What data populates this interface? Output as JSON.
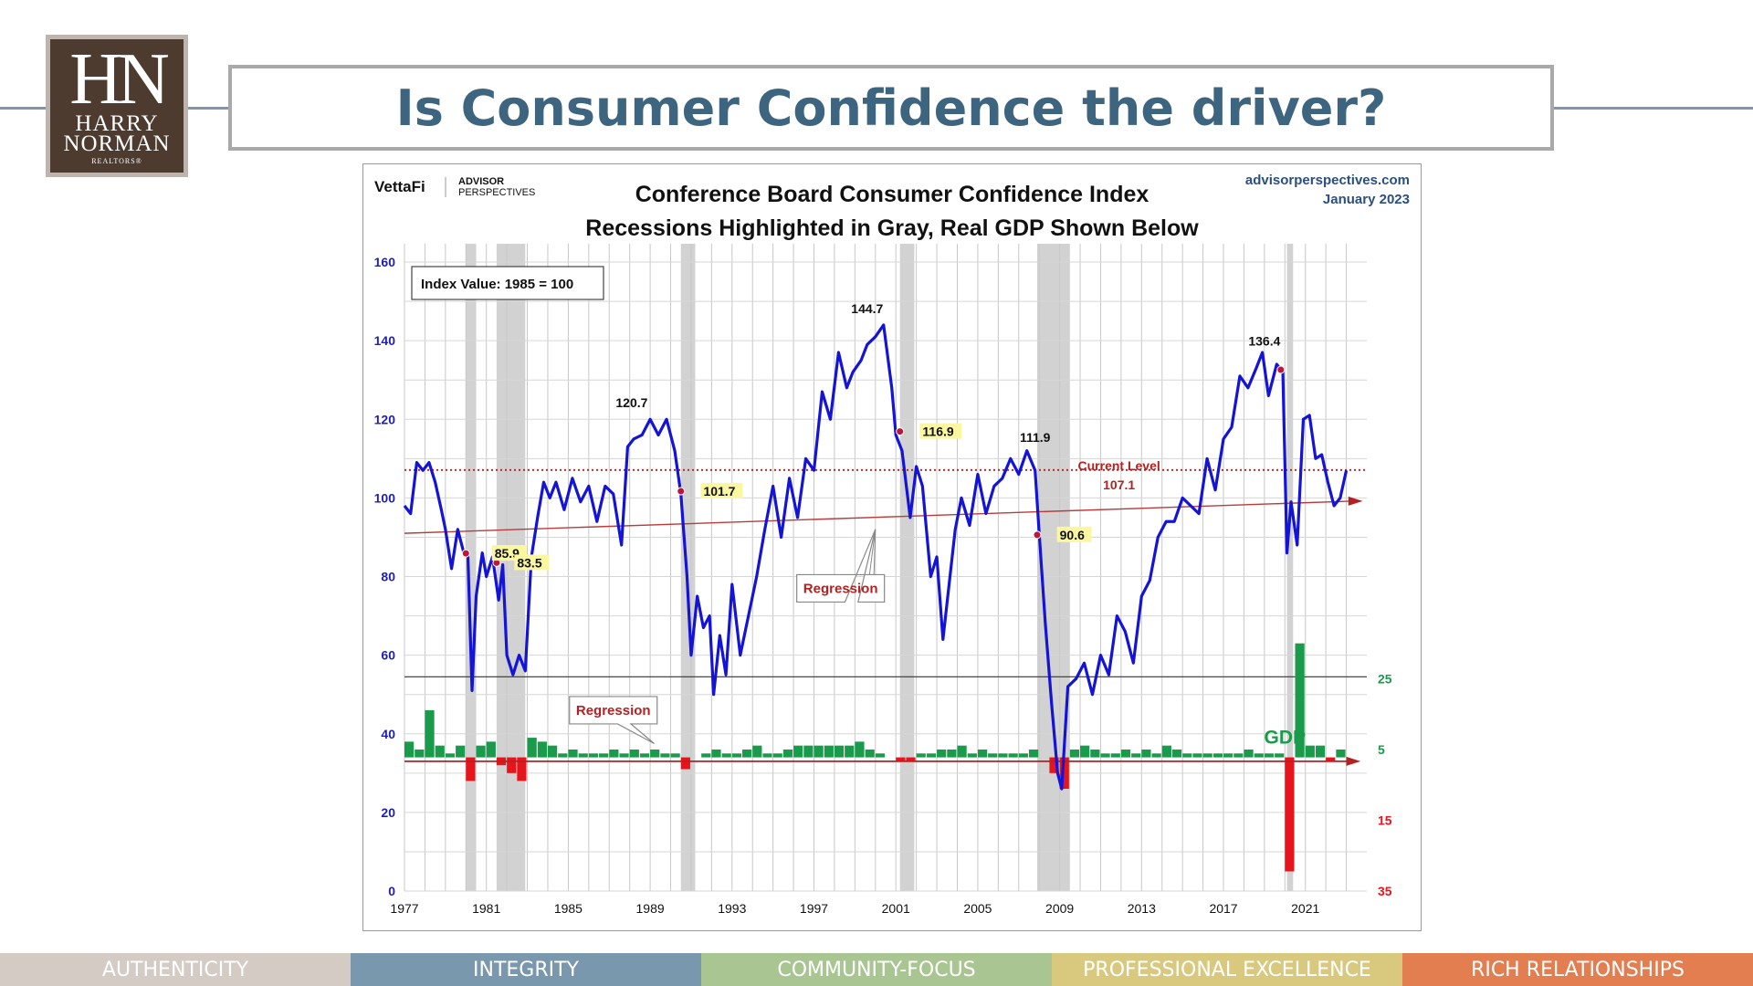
{
  "logo": {
    "monogram": "HN",
    "line1": "HARRY",
    "line2": "NORMAN",
    "line3": "REALTORS®"
  },
  "slide_title": "Is Consumer Confidence the driver?",
  "footer": {
    "items": [
      {
        "label": "AUTHENTICITY",
        "color": "#d3cbc4"
      },
      {
        "label": "INTEGRITY",
        "color": "#7a98ad"
      },
      {
        "label": "COMMUNITY-FOCUS",
        "color": "#a8c592"
      },
      {
        "label": "PROFESSIONAL EXCELLENCE",
        "color": "#d8c97e"
      },
      {
        "label": "RICH RELATIONSHIPS",
        "color": "#e27e50"
      }
    ]
  },
  "chart_data": {
    "type": "line",
    "brand": {
      "vettafi": "VettaFi",
      "ap1": "ADVISOR",
      "ap2": "PERSPECTIVES"
    },
    "source": "advisorperspectives.com",
    "date": "January 2023",
    "title": "Conference Board Consumer Confidence Index",
    "subtitle": "Recessions Highlighted in Gray, Real GDP Shown Below",
    "index_note": "Index Value: 1985 = 100",
    "x_ticks": [
      "1977",
      "1981",
      "1985",
      "1989",
      "1993",
      "1997",
      "2001",
      "2005",
      "2009",
      "2013",
      "2017",
      "2021"
    ],
    "xlim": [
      1977,
      2024
    ],
    "y_ticks": [
      "0",
      "20",
      "40",
      "60",
      "80",
      "100",
      "120",
      "140",
      "160"
    ],
    "ylim": [
      0,
      160
    ],
    "gdp_ticks": [
      {
        "label": "25",
        "y": 54
      },
      {
        "label": "5",
        "y": 36
      },
      {
        "label": "15",
        "y": 18
      },
      {
        "label": "35",
        "y": 0
      }
    ],
    "recessions": [
      [
        1980.0,
        1980.5
      ],
      [
        1981.5,
        1982.9
      ],
      [
        1990.5,
        1991.2
      ],
      [
        2001.2,
        2001.9
      ],
      [
        2007.9,
        2009.5
      ],
      [
        2020.1,
        2020.4
      ]
    ],
    "confidence": {
      "x": [
        1977.0,
        1977.3,
        1977.6,
        1977.9,
        1978.2,
        1978.5,
        1978.8,
        1979.0,
        1979.3,
        1979.6,
        1979.9,
        1980.1,
        1980.3,
        1980.5,
        1980.8,
        1981.0,
        1981.3,
        1981.6,
        1981.8,
        1982.0,
        1982.3,
        1982.6,
        1982.9,
        1983.2,
        1983.5,
        1983.8,
        1984.1,
        1984.4,
        1984.8,
        1985.2,
        1985.6,
        1986.0,
        1986.4,
        1986.8,
        1987.2,
        1987.6,
        1987.9,
        1988.2,
        1988.6,
        1989.0,
        1989.4,
        1989.8,
        1990.2,
        1990.5,
        1990.8,
        1991.0,
        1991.3,
        1991.6,
        1991.9,
        1992.1,
        1992.4,
        1992.7,
        1993.0,
        1993.4,
        1993.8,
        1994.2,
        1994.6,
        1995.0,
        1995.4,
        1995.8,
        1996.2,
        1996.6,
        1997.0,
        1997.4,
        1997.8,
        1998.2,
        1998.6,
        1998.9,
        1999.3,
        1999.6,
        2000.0,
        2000.4,
        2000.8,
        2001.0,
        2001.3,
        2001.7,
        2002.0,
        2002.3,
        2002.7,
        2003.0,
        2003.3,
        2003.6,
        2003.9,
        2004.2,
        2004.6,
        2005.0,
        2005.4,
        2005.8,
        2006.2,
        2006.6,
        2007.0,
        2007.4,
        2007.8,
        2008.0,
        2008.3,
        2008.6,
        2008.9,
        2009.1,
        2009.4,
        2009.8,
        2010.2,
        2010.6,
        2011.0,
        2011.4,
        2011.8,
        2012.2,
        2012.6,
        2013.0,
        2013.4,
        2013.8,
        2014.2,
        2014.6,
        2015.0,
        2015.4,
        2015.8,
        2016.2,
        2016.6,
        2017.0,
        2017.4,
        2017.8,
        2018.2,
        2018.6,
        2018.9,
        2019.2,
        2019.6,
        2019.9,
        2020.1,
        2020.3,
        2020.6,
        2020.9,
        2021.2,
        2021.5,
        2021.8,
        2022.1,
        2022.4,
        2022.7,
        2023.0
      ],
      "y": [
        98,
        96,
        109,
        107,
        109,
        104,
        97,
        92,
        82,
        92,
        86,
        85,
        51,
        75,
        86,
        80,
        85,
        74,
        83,
        60,
        55,
        60,
        56,
        85,
        95,
        104,
        100,
        104,
        97,
        105,
        99,
        103,
        94,
        103,
        101,
        88,
        113,
        115,
        116,
        120,
        116,
        120,
        112,
        101,
        80,
        60,
        75,
        67,
        70,
        50,
        65,
        55,
        78,
        60,
        70,
        80,
        92,
        103,
        90,
        105,
        95,
        110,
        107,
        127,
        120,
        137,
        128,
        132,
        135,
        139,
        141,
        144,
        128,
        116,
        112,
        95,
        108,
        103,
        80,
        85,
        64,
        78,
        92,
        100,
        93,
        106,
        96,
        103,
        105,
        110,
        106,
        112,
        107,
        91,
        68,
        48,
        30,
        26,
        52,
        54,
        58,
        50,
        60,
        55,
        70,
        66,
        58,
        75,
        79,
        90,
        94,
        94,
        100,
        98,
        96,
        110,
        102,
        115,
        118,
        131,
        128,
        133,
        137,
        126,
        134,
        132,
        86,
        99,
        88,
        120,
        121,
        110,
        111,
        104,
        98,
        100,
        107
      ]
    },
    "labels": [
      {
        "x": 1999.6,
        "y": 144.7,
        "text": "144.7",
        "style": "peak"
      },
      {
        "x": 2019.0,
        "y": 136.4,
        "text": "136.4",
        "style": "peak"
      },
      {
        "x": 1988.1,
        "y": 120.7,
        "text": "120.7",
        "style": "peak"
      },
      {
        "x": 2007.8,
        "y": 111.9,
        "text": "111.9",
        "style": "peak"
      },
      {
        "x": 1981.0,
        "y": 85.9,
        "text": "85.9",
        "style": "hl"
      },
      {
        "x": 1982.1,
        "y": 83.5,
        "text": "83.5",
        "style": "hl"
      },
      {
        "x": 1991.2,
        "y": 101.7,
        "text": "101.7",
        "style": "hl"
      },
      {
        "x": 2001.9,
        "y": 116.9,
        "text": "116.9",
        "style": "hl"
      },
      {
        "x": 2008.6,
        "y": 90.6,
        "text": "90.6",
        "style": "hl"
      }
    ],
    "recession_points": [
      {
        "x": 1980.0,
        "y": 85.9
      },
      {
        "x": 1981.5,
        "y": 83.5
      },
      {
        "x": 1990.5,
        "y": 101.7
      },
      {
        "x": 2001.2,
        "y": 116.9
      },
      {
        "x": 2007.9,
        "y": 90.6
      },
      {
        "x": 2019.8,
        "y": 132.6
      }
    ],
    "current_level": {
      "value": 107.1,
      "label": "Current Level",
      "value_label": "107.1"
    },
    "regression": {
      "start": 91,
      "end": 99.2,
      "label": "Regression"
    },
    "gdp_regression": {
      "value": 33,
      "label": "Regression"
    },
    "gdp_label": "GDP",
    "gdp_zero": 34,
    "gdp": {
      "x": [
        1977.0,
        1977.5,
        1978.0,
        1978.5,
        1979.0,
        1979.5,
        1980.0,
        1980.5,
        1981.0,
        1981.5,
        1982.0,
        1982.5,
        1983.0,
        1983.5,
        1984.0,
        1984.5,
        1985.0,
        1985.5,
        1986.0,
        1986.5,
        1987.0,
        1987.5,
        1988.0,
        1988.5,
        1989.0,
        1989.5,
        1990.0,
        1990.5,
        1991.0,
        1991.5,
        1992.0,
        1992.5,
        1993.0,
        1993.5,
        1994.0,
        1994.5,
        1995.0,
        1995.5,
        1996.0,
        1996.5,
        1997.0,
        1997.5,
        1998.0,
        1998.5,
        1999.0,
        1999.5,
        2000.0,
        2000.5,
        2001.0,
        2001.5,
        2002.0,
        2002.5,
        2003.0,
        2003.5,
        2004.0,
        2004.5,
        2005.0,
        2005.5,
        2006.0,
        2006.5,
        2007.0,
        2007.5,
        2008.0,
        2008.5,
        2009.0,
        2009.5,
        2010.0,
        2010.5,
        2011.0,
        2011.5,
        2012.0,
        2012.5,
        2013.0,
        2013.5,
        2014.0,
        2014.5,
        2015.0,
        2015.5,
        2016.0,
        2016.5,
        2017.0,
        2017.5,
        2018.0,
        2018.5,
        2019.0,
        2019.5,
        2020.0,
        2020.5,
        2021.0,
        2021.5,
        2022.0,
        2022.5
      ],
      "y": [
        38,
        36,
        46,
        37,
        35,
        37,
        28,
        37,
        38,
        32,
        30,
        28,
        39,
        38,
        37,
        35,
        36,
        35,
        35,
        35,
        36,
        35,
        36,
        35,
        36,
        35,
        35,
        31,
        34,
        35,
        36,
        35,
        35,
        36,
        37,
        35,
        35,
        36,
        37,
        37,
        37,
        37,
        37,
        37,
        38,
        36,
        35,
        34,
        33,
        33,
        35,
        35,
        36,
        36,
        37,
        35,
        36,
        35,
        35,
        35,
        35,
        36,
        34,
        30,
        26,
        36,
        37,
        36,
        35,
        35,
        36,
        35,
        36,
        35,
        37,
        36,
        35,
        35,
        35,
        35,
        35,
        35,
        36,
        35,
        35,
        35,
        5,
        63,
        37,
        37,
        33,
        36
      ]
    }
  }
}
